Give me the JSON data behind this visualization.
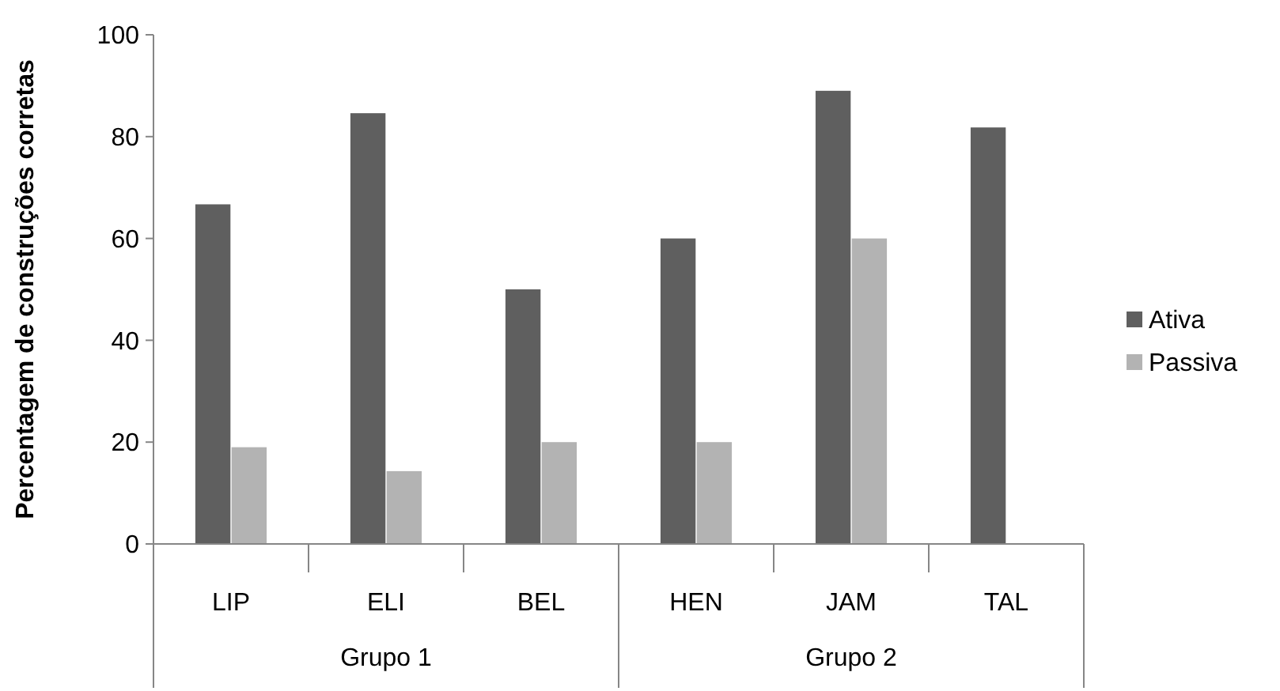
{
  "chart_data": {
    "type": "bar",
    "ylabel": "Percentagem de construções corretas",
    "categories": [
      "LIP",
      "ELI",
      "BEL",
      "HEN",
      "JAM",
      "TAL"
    ],
    "series": [
      {
        "name": "Ativa",
        "color": "#5f5f5f",
        "values": [
          66.7,
          84.6,
          50,
          60,
          89,
          81.8
        ]
      },
      {
        "name": "Passiva",
        "color": "#b3b3b3",
        "values": [
          19,
          14.3,
          20,
          20,
          60,
          0
        ]
      }
    ],
    "ylim": [
      0,
      100
    ],
    "yticks": [
      0,
      20,
      40,
      60,
      80,
      100
    ],
    "grid": false,
    "legend": "right",
    "annotations": [
      "Grupo 1",
      "Grupo 2"
    ]
  }
}
